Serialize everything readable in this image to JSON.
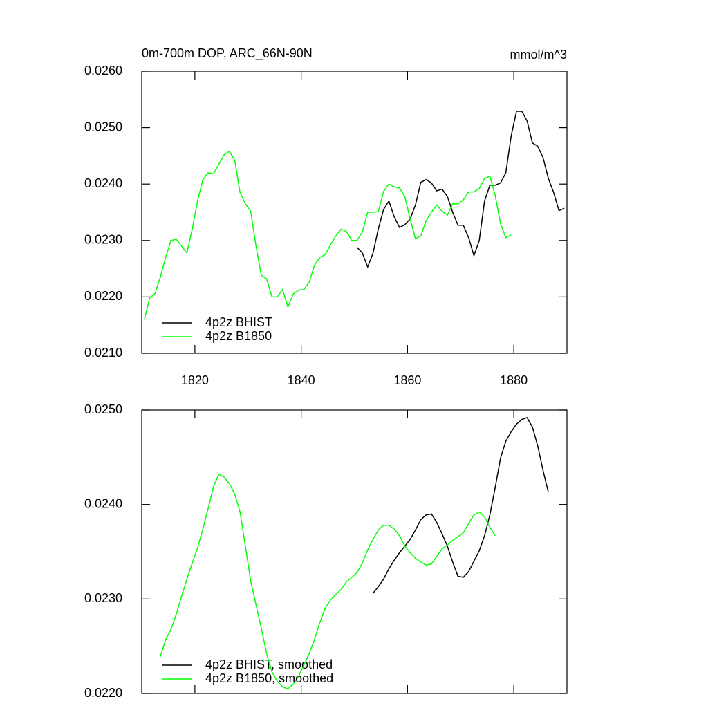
{
  "chart_data": [
    {
      "type": "line",
      "title": "0m-700m DOP, ARC_66N-90N",
      "units": "mmol/m^3",
      "xlim": [
        1810,
        1890
      ],
      "xticks": [
        1820,
        1840,
        1860,
        1880
      ],
      "show_xtick_labels": true,
      "ylim": [
        0.021,
        0.026
      ],
      "yticks": [
        {
          "value": 0.021,
          "label": "0.0210"
        },
        {
          "value": 0.022,
          "label": "0.0220"
        },
        {
          "value": 0.023,
          "label": "0.0230"
        },
        {
          "value": 0.024,
          "label": "0.0240"
        },
        {
          "value": 0.025,
          "label": "0.0250"
        },
        {
          "value": 0.026,
          "label": "0.0260"
        }
      ],
      "legend": "lower left",
      "series": [
        {
          "name": "4p2z BHIST",
          "color": "#000000",
          "x": [
            1850.5,
            1851.5,
            1852.5,
            1853.5,
            1854.5,
            1855.5,
            1856.5,
            1857.5,
            1858.5,
            1859.5,
            1860.5,
            1861.5,
            1862.5,
            1863.5,
            1864.5,
            1865.5,
            1866.5,
            1867.5,
            1868.5,
            1869.5,
            1870.5,
            1871.5,
            1872.5,
            1873.5,
            1874.5,
            1875.5,
            1876.5,
            1877.5,
            1878.5,
            1879.5,
            1880.5,
            1881.5,
            1882.5,
            1883.5,
            1884.5,
            1885.5,
            1886.5,
            1887.5,
            1888.5,
            1889.5
          ],
          "values": [
            0.02288,
            0.02278,
            0.02253,
            0.02277,
            0.0232,
            0.02355,
            0.0237,
            0.02342,
            0.02323,
            0.02328,
            0.02338,
            0.02363,
            0.02403,
            0.02408,
            0.02402,
            0.02388,
            0.02391,
            0.02378,
            0.0235,
            0.02327,
            0.02327,
            0.02305,
            0.02273,
            0.023,
            0.0237,
            0.02398,
            0.02398,
            0.02402,
            0.0242,
            0.02485,
            0.02529,
            0.02529,
            0.02512,
            0.02473,
            0.02467,
            0.02447,
            0.0241,
            0.02385,
            0.02353,
            0.02357
          ]
        },
        {
          "name": "4p2z B1850",
          "color": "#00ff00",
          "x": [
            1810.5,
            1811.5,
            1812.5,
            1813.5,
            1814.5,
            1815.5,
            1816.5,
            1817.5,
            1818.5,
            1819.5,
            1820.5,
            1821.5,
            1822.5,
            1823.5,
            1824.5,
            1825.5,
            1826.5,
            1827.5,
            1828.5,
            1829.5,
            1830.5,
            1831.5,
            1832.5,
            1833.5,
            1834.5,
            1835.5,
            1836.5,
            1837.5,
            1838.5,
            1839.5,
            1840.5,
            1841.5,
            1842.5,
            1843.5,
            1844.5,
            1845.5,
            1846.5,
            1847.5,
            1848.5,
            1849.5,
            1850.5,
            1851.5,
            1852.5,
            1853.5,
            1854.5,
            1855.5,
            1856.5,
            1857.5,
            1858.5,
            1859.5,
            1860.5,
            1861.5,
            1862.5,
            1863.5,
            1864.5,
            1865.5,
            1866.5,
            1867.5,
            1868.5,
            1869.5,
            1870.5,
            1871.5,
            1872.5,
            1873.5,
            1874.5,
            1875.5,
            1876.5,
            1877.5,
            1878.5,
            1879.5
          ],
          "values": [
            0.0216,
            0.02198,
            0.02206,
            0.02235,
            0.0227,
            0.023,
            0.02302,
            0.0229,
            0.02278,
            0.0232,
            0.0237,
            0.02408,
            0.0242,
            0.02418,
            0.02435,
            0.02452,
            0.02458,
            0.02442,
            0.02385,
            0.02365,
            0.02352,
            0.0229,
            0.02238,
            0.02232,
            0.022,
            0.022,
            0.02213,
            0.02182,
            0.02205,
            0.02212,
            0.02213,
            0.02226,
            0.02256,
            0.0227,
            0.02275,
            0.02292,
            0.02308,
            0.0232,
            0.02316,
            0.023,
            0.023,
            0.02315,
            0.0235,
            0.0235,
            0.02351,
            0.02387,
            0.024,
            0.02395,
            0.02393,
            0.02378,
            0.02338,
            0.02303,
            0.02308,
            0.02335,
            0.0235,
            0.02363,
            0.02352,
            0.02345,
            0.02365,
            0.02365,
            0.02372,
            0.02386,
            0.02386,
            0.02392,
            0.0241,
            0.02414,
            0.0238,
            0.0233,
            0.02305,
            0.0231
          ]
        }
      ]
    },
    {
      "type": "line",
      "xlim": [
        1810,
        1890
      ],
      "xticks": [
        1820,
        1840,
        1860,
        1880
      ],
      "show_xtick_labels": false,
      "ylim": [
        0.022,
        0.025
      ],
      "yticks": [
        {
          "value": 0.022,
          "label": "0.0220"
        },
        {
          "value": 0.023,
          "label": "0.0230"
        },
        {
          "value": 0.024,
          "label": "0.0240"
        },
        {
          "value": 0.025,
          "label": "0.0250"
        }
      ],
      "legend": "lower left",
      "series": [
        {
          "name": "4p2z BHIST, smoothed",
          "color": "#000000",
          "x": [
            1853.5,
            1854.5,
            1855.5,
            1856.5,
            1857.5,
            1858.5,
            1859.5,
            1860.5,
            1861.5,
            1862.5,
            1863.5,
            1864.5,
            1865.5,
            1866.5,
            1867.5,
            1868.5,
            1869.5,
            1870.5,
            1871.5,
            1872.5,
            1873.5,
            1874.5,
            1875.5,
            1876.5,
            1877.5,
            1878.5,
            1879.5,
            1880.5,
            1881.5,
            1882.5,
            1883.5,
            1884.5,
            1885.5,
            1886.5
          ],
          "values": [
            0.02306,
            0.02313,
            0.02321,
            0.02332,
            0.02341,
            0.02349,
            0.02356,
            0.02363,
            0.02373,
            0.02384,
            0.02389,
            0.0239,
            0.02381,
            0.02369,
            0.02356,
            0.02339,
            0.02324,
            0.02323,
            0.02329,
            0.0234,
            0.02351,
            0.02367,
            0.02389,
            0.02418,
            0.02449,
            0.02467,
            0.02477,
            0.02485,
            0.0249,
            0.02492,
            0.02482,
            0.02462,
            0.02436,
            0.02413
          ]
        },
        {
          "name": "4p2z B1850, smoothed",
          "color": "#00ff00",
          "x": [
            1813.5,
            1814.5,
            1815.5,
            1816.5,
            1817.5,
            1818.5,
            1819.5,
            1820.5,
            1821.5,
            1822.5,
            1823.5,
            1824.5,
            1825.5,
            1826.5,
            1827.5,
            1828.5,
            1829.5,
            1830.5,
            1831.5,
            1832.5,
            1833.5,
            1834.5,
            1835.5,
            1836.5,
            1837.5,
            1838.5,
            1839.5,
            1840.5,
            1841.5,
            1842.5,
            1843.5,
            1844.5,
            1845.5,
            1846.5,
            1847.5,
            1848.5,
            1849.5,
            1850.5,
            1851.5,
            1852.5,
            1853.5,
            1854.5,
            1855.5,
            1856.5,
            1857.5,
            1858.5,
            1859.5,
            1860.5,
            1861.5,
            1862.5,
            1863.5,
            1864.5,
            1865.5,
            1866.5,
            1867.5,
            1868.5,
            1869.5,
            1870.5,
            1871.5,
            1872.5,
            1873.5,
            1874.5,
            1875.5,
            1876.5
          ],
          "values": [
            0.02239,
            0.02257,
            0.02268,
            0.02284,
            0.02303,
            0.02321,
            0.02338,
            0.02354,
            0.02374,
            0.02396,
            0.02419,
            0.02432,
            0.02429,
            0.02422,
            0.02411,
            0.02392,
            0.02356,
            0.02319,
            0.02294,
            0.02269,
            0.02242,
            0.02223,
            0.02213,
            0.02207,
            0.02205,
            0.0221,
            0.02218,
            0.0223,
            0.02242,
            0.02257,
            0.02275,
            0.0229,
            0.02299,
            0.02305,
            0.0231,
            0.02318,
            0.02323,
            0.02328,
            0.02338,
            0.02352,
            0.02363,
            0.02373,
            0.02378,
            0.02378,
            0.02374,
            0.02367,
            0.02356,
            0.02349,
            0.02343,
            0.02339,
            0.02336,
            0.02337,
            0.02345,
            0.02353,
            0.02357,
            0.02362,
            0.02366,
            0.0237,
            0.0238,
            0.02389,
            0.02392,
            0.02387,
            0.02376,
            0.02367
          ]
        }
      ]
    }
  ]
}
